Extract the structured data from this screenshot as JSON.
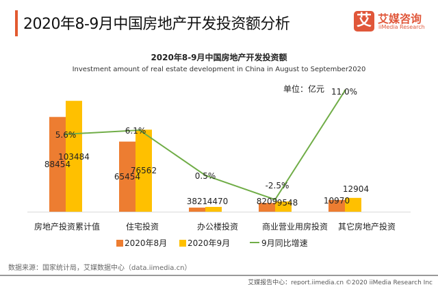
{
  "header": {
    "title": "2020年8-9月中国房地产开发投资额分析",
    "logo_mark": "艾",
    "logo_cn": "艾媒咨询",
    "logo_en": "iiMedia Research"
  },
  "chart_data": {
    "type": "bar+line",
    "title": "2020年8-9月中国房地产开发投资额",
    "subtitle": "Investment amount of real estate development in China in August to September2020",
    "unit": "单位：亿元",
    "categories": [
      "房地产投资累计值",
      "住宅投资",
      "办公楼投资",
      "商业营业用房投资",
      "其它房地产投资"
    ],
    "series": [
      {
        "name": "2020年8月",
        "type": "bar",
        "color": "#ed7d31",
        "values": [
          88454,
          65454,
          3821,
          8209,
          10970
        ]
      },
      {
        "name": "2020年9月",
        "type": "bar",
        "color": "#ffc000",
        "values": [
          103484,
          76562,
          4470,
          9548,
          12904
        ]
      },
      {
        "name": "9月同比增速",
        "type": "line",
        "color": "#70ad47",
        "values": [
          5.6,
          6.1,
          0.5,
          -2.5,
          11.0
        ],
        "labels": [
          "5.6%",
          "6.1%",
          "0.5%",
          "-2.5%",
          "11.0%"
        ]
      }
    ],
    "ylim": [
      0,
      110000
    ],
    "y2lim": [
      -4,
      10.6
    ],
    "grid": false,
    "legend": "bottom"
  },
  "source": "数据来源：国家统计局，艾媒数据中心（data.iimedia.cn）",
  "footer": "艾媒报告中心：report.iimedia.cn  ©2020  iiMedia Research  Inc"
}
